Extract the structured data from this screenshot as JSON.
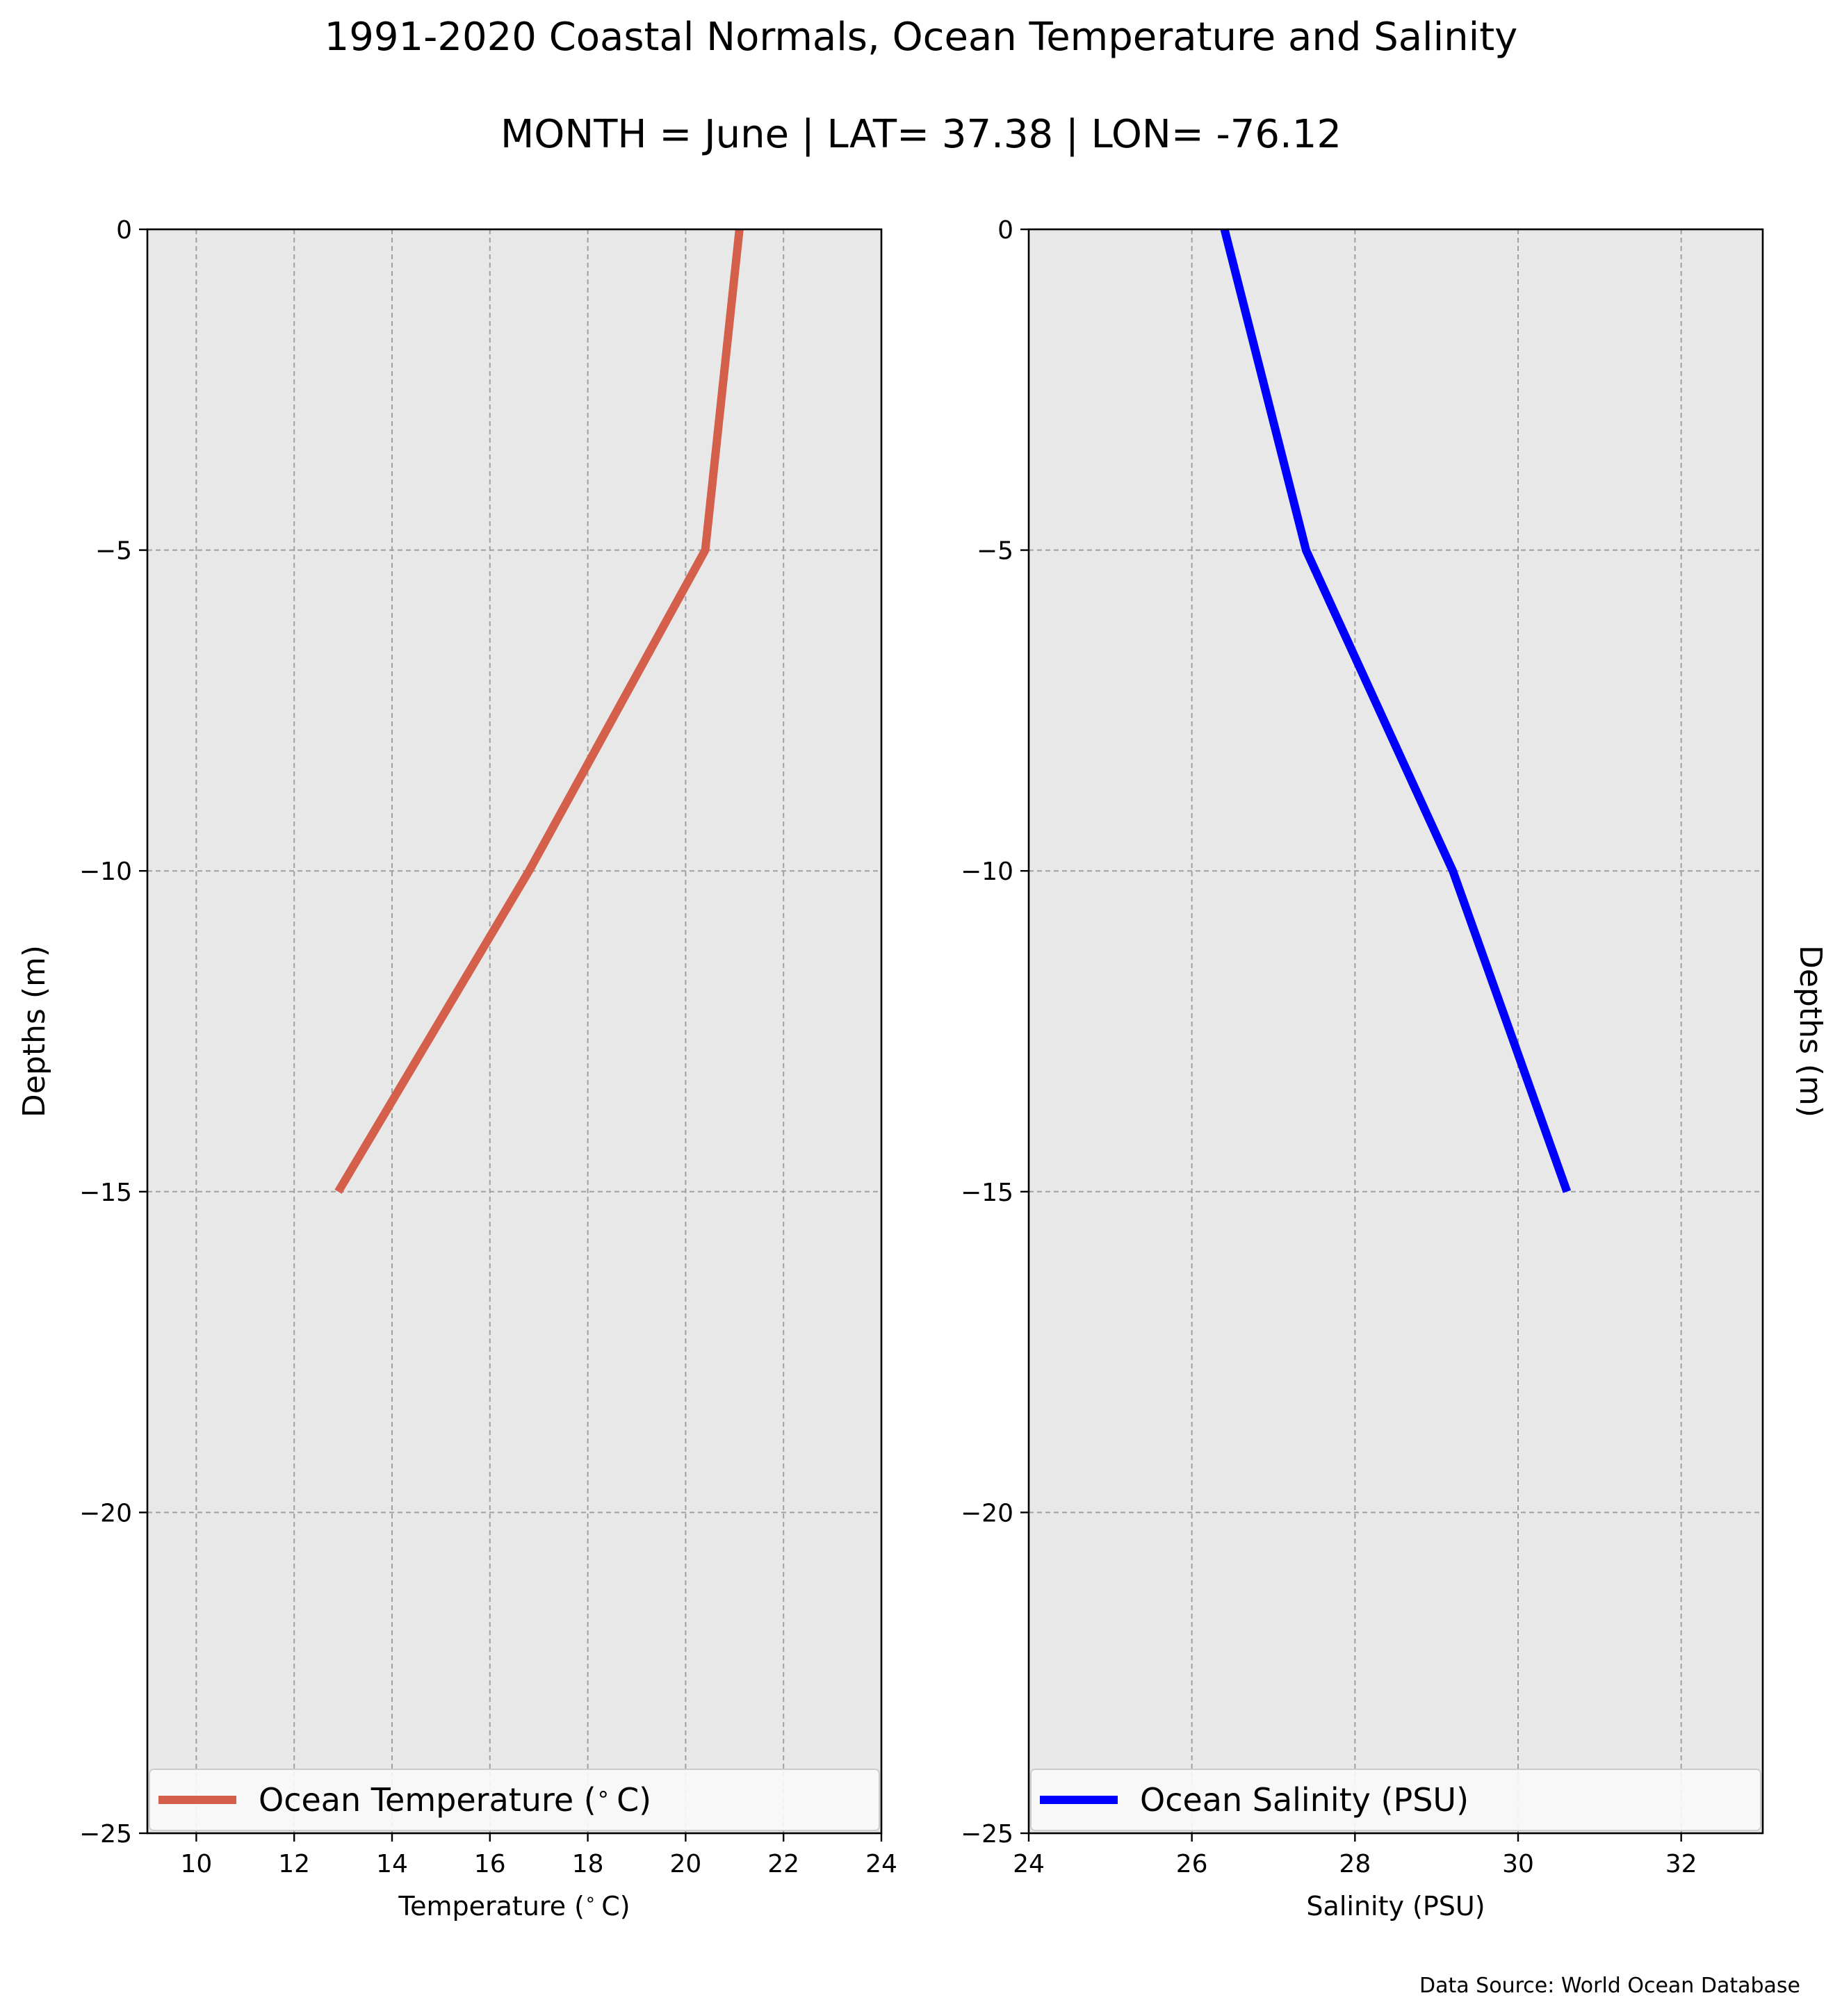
{
  "figure": {
    "title": "1991-2020 Coastal Normals, Ocean Temperature and Salinity",
    "subtitle": "MONTH = June | LAT= 37.38 | LON= -76.12",
    "source_note": "Data Source: World Ocean Database",
    "background": "#e8e8e8"
  },
  "chart_data": [
    {
      "type": "line",
      "orientation": "vertical-profile",
      "xlabel": "Temperature ($^\\circ$C)",
      "ylabel": "Depths (m)",
      "xlim": [
        9,
        24
      ],
      "ylim": [
        -25,
        0
      ],
      "xticks": [
        10,
        12,
        14,
        16,
        18,
        20,
        22,
        24
      ],
      "yticks": [
        0,
        -5,
        -10,
        -15,
        -20,
        -25
      ],
      "grid": true,
      "legend": "bottom",
      "series": [
        {
          "name": "Ocean Temperature ($^\\circ$C)",
          "color": "#d45f4a",
          "x": [
            21.1,
            20.4,
            16.8,
            12.9
          ],
          "y": [
            0,
            -5,
            -10,
            -15
          ]
        }
      ]
    },
    {
      "type": "line",
      "orientation": "vertical-profile",
      "xlabel": "Salinity (PSU)",
      "ylabel": "Depths (m)",
      "xlim": [
        24,
        33
      ],
      "ylim": [
        -25,
        0
      ],
      "xticks": [
        24,
        26,
        28,
        30,
        32
      ],
      "yticks": [
        0,
        -5,
        -10,
        -15,
        -20,
        -25
      ],
      "grid": true,
      "legend": "bottom",
      "series": [
        {
          "name": "Ocean Salinity (PSU)",
          "color": "#0000ff",
          "x": [
            26.4,
            27.4,
            29.2,
            30.6
          ],
          "y": [
            0,
            -5,
            -10,
            -15
          ]
        }
      ]
    }
  ]
}
